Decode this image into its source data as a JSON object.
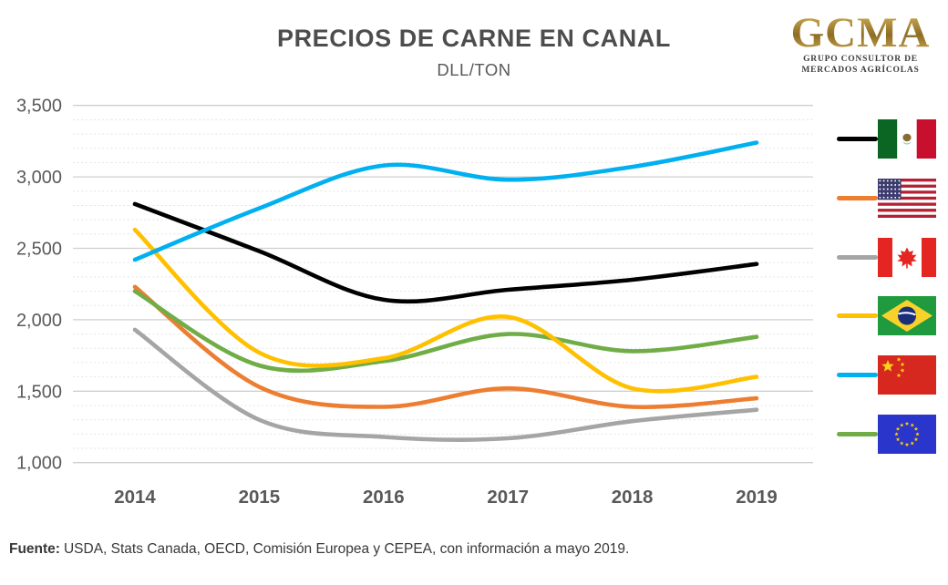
{
  "logo": {
    "text": "GCMA",
    "tagline1": "GRUPO CONSULTOR DE",
    "tagline2": "MERCADOS AGRÍCOLAS",
    "gold": "#A9852F"
  },
  "footer": {
    "label": "Fuente:",
    "text": "USDA, Stats Canada, OECD, Comisión Europea y CEPEA, con información a mayo 2019."
  },
  "chart_data": {
    "type": "line",
    "title": "PRECIOS DE CARNE EN CANAL",
    "subtitle": "DLL/TON",
    "x": [
      2014,
      2015,
      2016,
      2017,
      2018,
      2019
    ],
    "x_labels": [
      "2014",
      "2015",
      "2016",
      "2017",
      "2018",
      "2019"
    ],
    "ylim": [
      1000,
      3500
    ],
    "y_ticks": [
      1000,
      1500,
      2000,
      2500,
      3000,
      3500
    ],
    "y_tick_labels": [
      "1,000",
      "1,500",
      "2,000",
      "2,500",
      "3,000",
      "3,500"
    ],
    "grid": {
      "minor_step": 100,
      "major_step": 500
    },
    "legend_position": "right",
    "series": [
      {
        "country": "México",
        "flag": "mexico-flag",
        "color": "#000000",
        "values": [
          2810,
          2480,
          2140,
          2210,
          2280,
          2390
        ]
      },
      {
        "country": "Estados Unidos",
        "flag": "usa-flag",
        "color": "#ED7D31",
        "values": [
          2230,
          1530,
          1390,
          1520,
          1390,
          1450
        ]
      },
      {
        "country": "Canadá",
        "flag": "canada-flag",
        "color": "#A5A5A5",
        "values": [
          1930,
          1300,
          1180,
          1170,
          1290,
          1370
        ]
      },
      {
        "country": "Brasil",
        "flag": "brazil-flag",
        "color": "#FFC000",
        "values": [
          2630,
          1770,
          1730,
          2020,
          1520,
          1600
        ]
      },
      {
        "country": "China",
        "flag": "china-flag",
        "color": "#00B0F0",
        "values": [
          2420,
          2780,
          3080,
          2980,
          3070,
          3240
        ]
      },
      {
        "country": "Unión Europea",
        "flag": "eu-flag",
        "color": "#70AD47",
        "values": [
          2200,
          1680,
          1710,
          1900,
          1780,
          1880
        ]
      }
    ]
  }
}
